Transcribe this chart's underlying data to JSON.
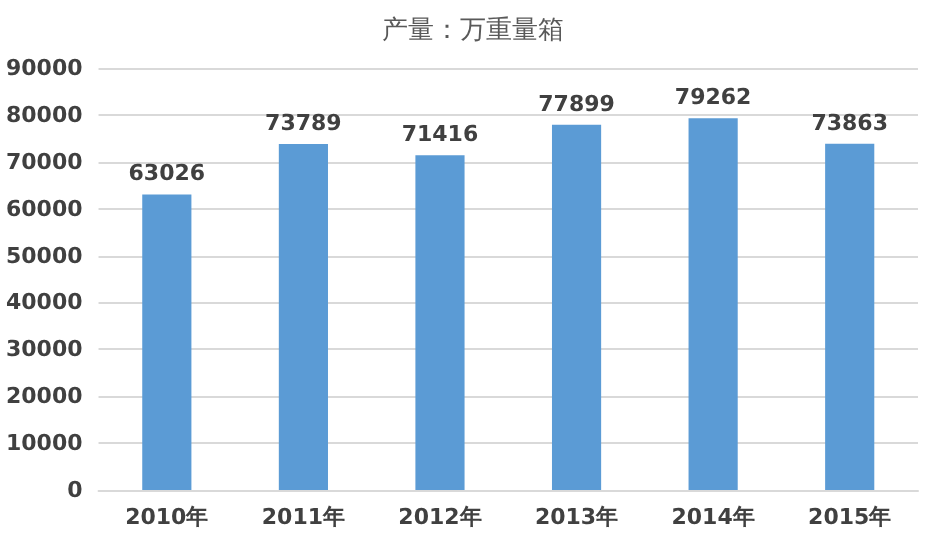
{
  "chart_data": {
    "type": "bar",
    "title": "产量：万重量箱",
    "categories": [
      "2010年",
      "2011年",
      "2012年",
      "2013年",
      "2014年",
      "2015年"
    ],
    "values": [
      63026,
      73789,
      71416,
      77899,
      79262,
      73863
    ],
    "color": "#5b9bd5",
    "ylim": [
      0,
      90000
    ],
    "yticks": [
      0,
      10000,
      20000,
      30000,
      40000,
      50000,
      60000,
      70000,
      80000,
      90000
    ],
    "grid": "y",
    "data_labels": true
  }
}
